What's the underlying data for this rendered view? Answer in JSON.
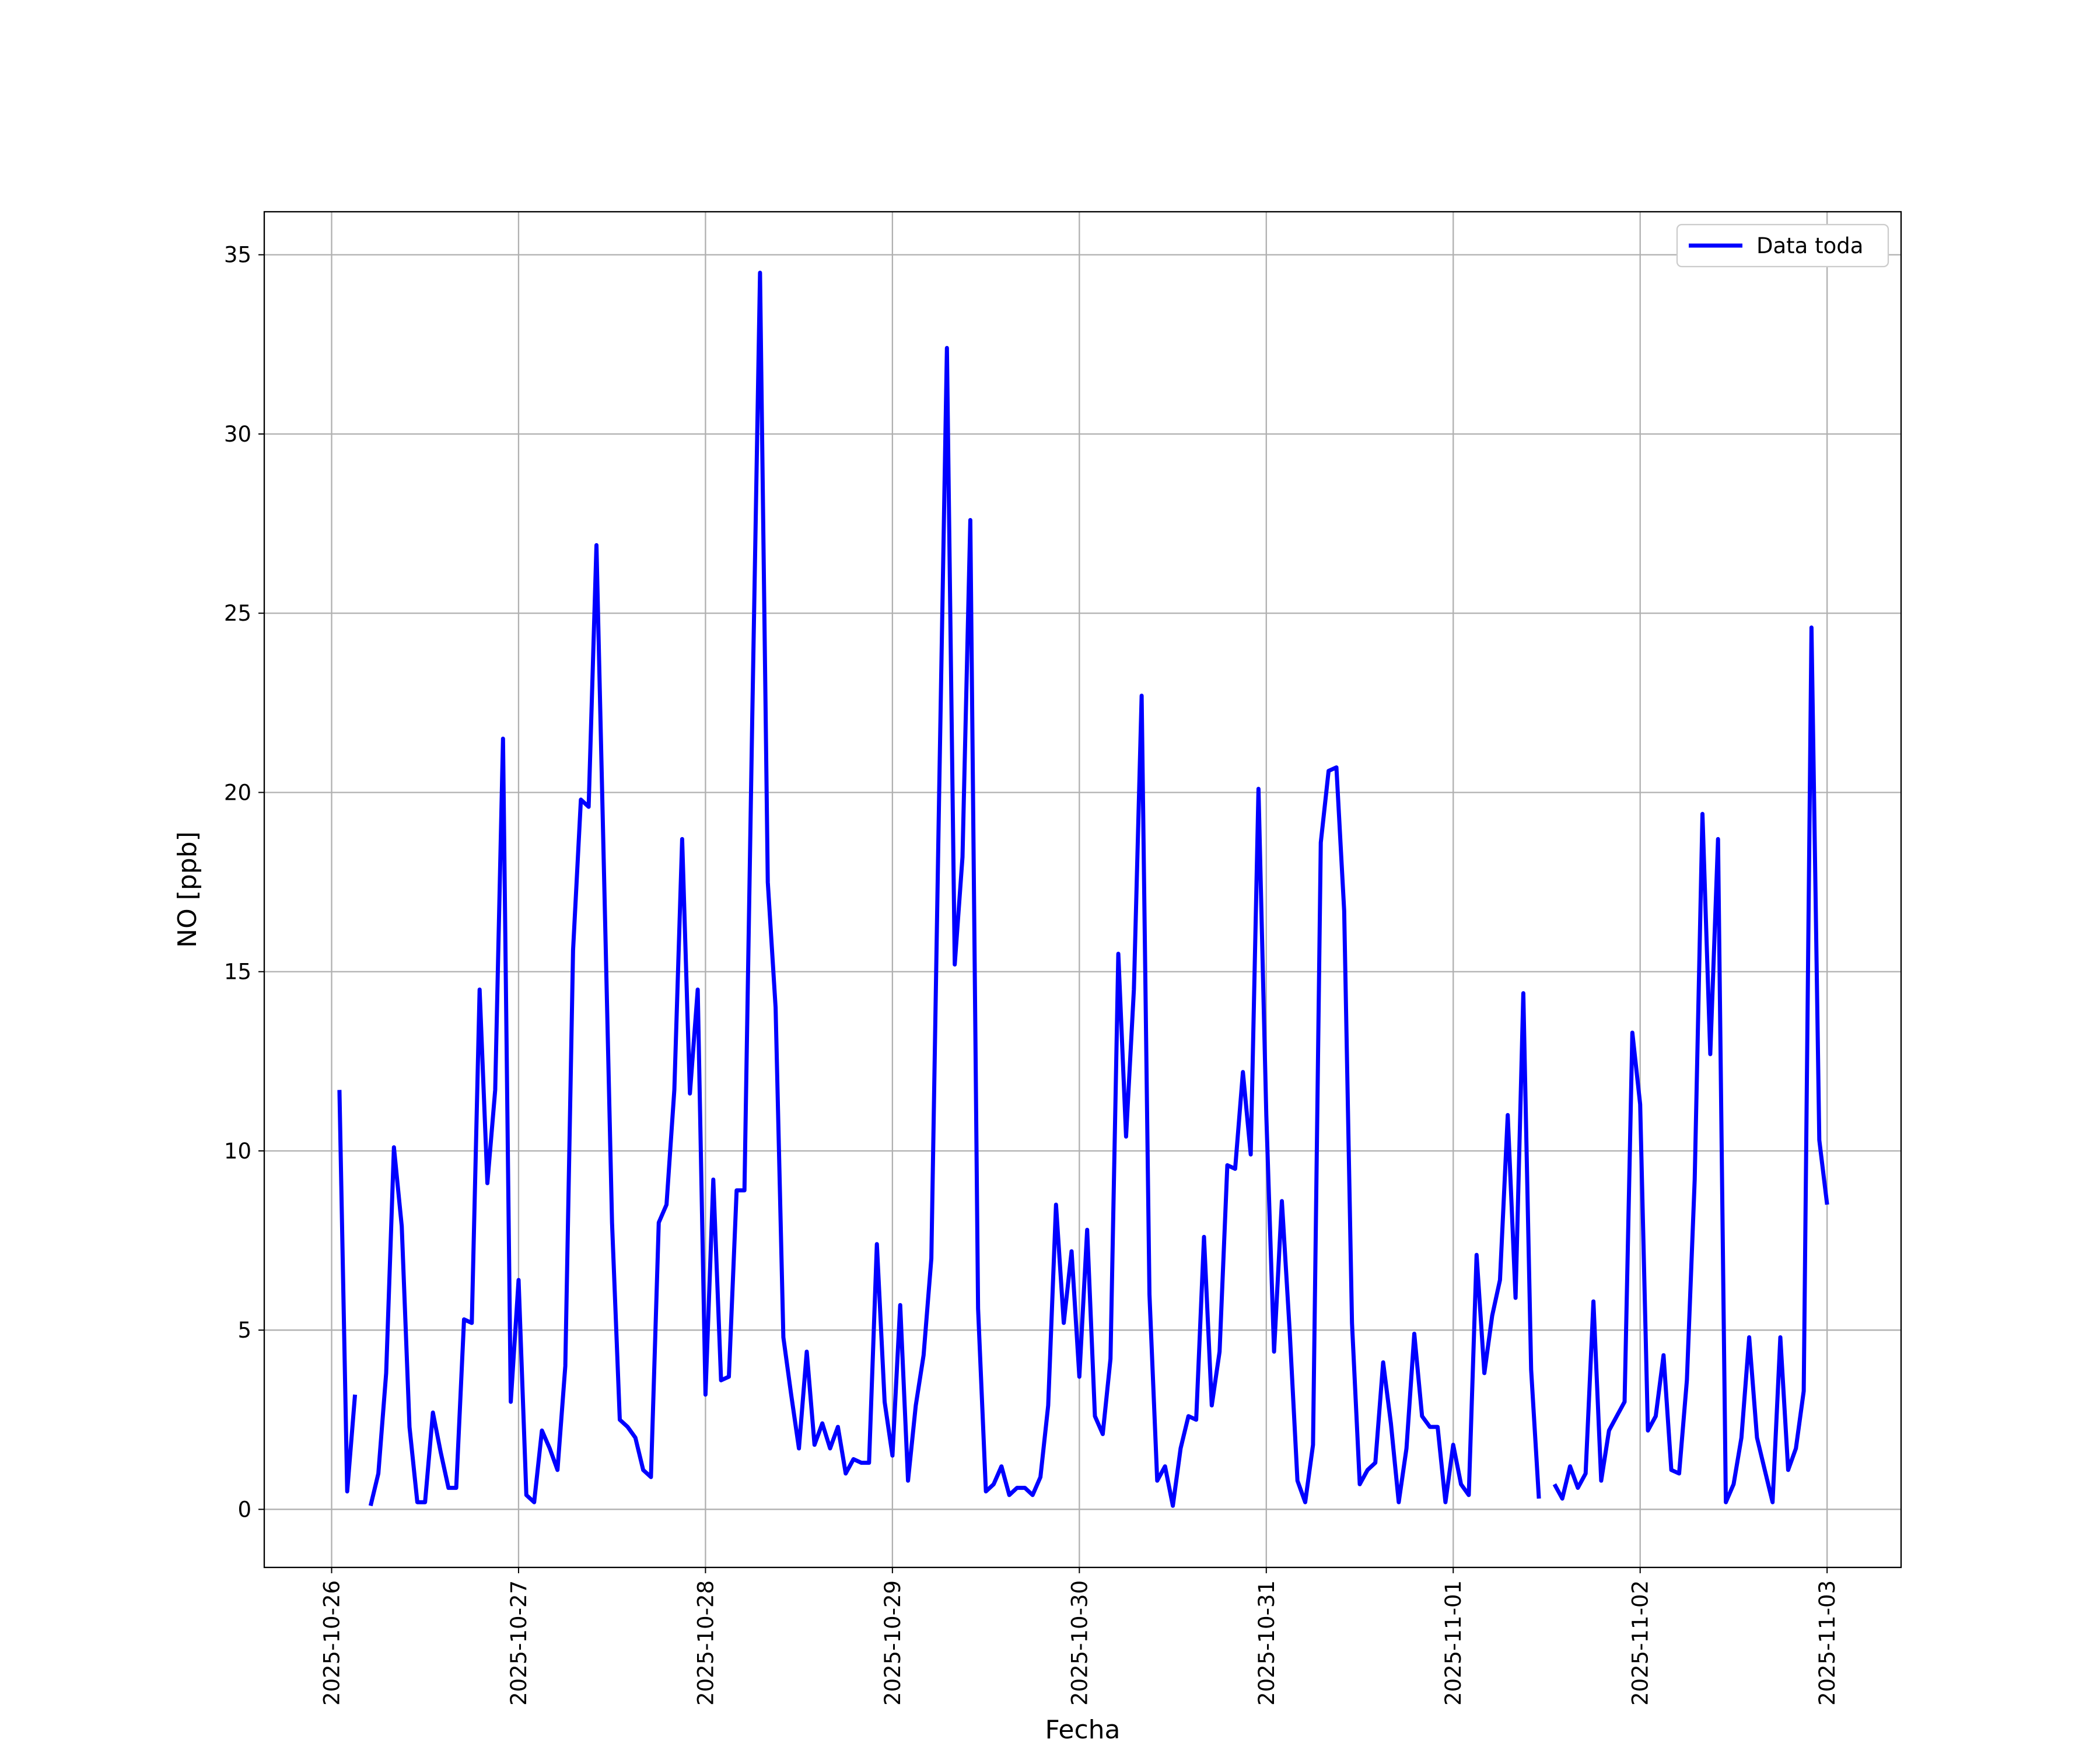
{
  "chart_data": {
    "type": "line",
    "xlabel": "Fecha",
    "ylabel": "NO [ppb]",
    "x": [
      1,
      2,
      3,
      4,
      5,
      6,
      7,
      8,
      9,
      10,
      11,
      12,
      13,
      14,
      15,
      16,
      17,
      18,
      19,
      20,
      21,
      22,
      23,
      24,
      25,
      26,
      27,
      28,
      29,
      30,
      31,
      32,
      33,
      34,
      35,
      36,
      37,
      38,
      39,
      40,
      41,
      42,
      43,
      44,
      45,
      46,
      47,
      48,
      49,
      50,
      51,
      52,
      53,
      54,
      55,
      56,
      57,
      58,
      59,
      60,
      61,
      62,
      63,
      64,
      65,
      66,
      67,
      68,
      69,
      70,
      71,
      72,
      73,
      74,
      75,
      76,
      77,
      78,
      79,
      80,
      81,
      82,
      83,
      84,
      85,
      86,
      87,
      88,
      89,
      90,
      91,
      92,
      93,
      94,
      95,
      96,
      97,
      98,
      99,
      100,
      101,
      102,
      103,
      104,
      105,
      106,
      107,
      108,
      109,
      110,
      111,
      112,
      113,
      114,
      115,
      116,
      117,
      118,
      119,
      120,
      121,
      122,
      123,
      124,
      125,
      126,
      127,
      128,
      129,
      130,
      131,
      132,
      133,
      134,
      135,
      136,
      137,
      138,
      139,
      140,
      141,
      142,
      143,
      144,
      145,
      146,
      147,
      148,
      149,
      150,
      151,
      152,
      153,
      154,
      155,
      156,
      157,
      158,
      159,
      160,
      161,
      162,
      163,
      164,
      165,
      166,
      167,
      168,
      169,
      170,
      171,
      172,
      173,
      174,
      175,
      176,
      177,
      178,
      179,
      180,
      181,
      182,
      183,
      184,
      185,
      186,
      187,
      188,
      189,
      190,
      191,
      192
    ],
    "series": [
      {
        "name": "Data toda",
        "color": "#0000ff",
        "values": [
          11.7,
          0.5,
          3.2,
          null,
          0.1,
          1.0,
          3.8,
          10.1,
          7.9,
          2.3,
          0.2,
          0.2,
          2.7,
          1.6,
          0.6,
          0.6,
          5.3,
          5.2,
          14.5,
          9.1,
          11.7,
          21.5,
          3.0,
          6.4,
          0.4,
          0.2,
          2.2,
          1.7,
          1.1,
          4.0,
          15.6,
          19.8,
          19.6,
          26.9,
          17.5,
          8.0,
          2.5,
          2.3,
          2.0,
          1.1,
          0.9,
          8.0,
          8.5,
          11.7,
          18.7,
          11.6,
          14.5,
          3.2,
          9.2,
          3.6,
          3.7,
          8.9,
          8.9,
          22,
          34.5,
          17.5,
          14.0,
          4.8,
          3.2,
          1.7,
          4.4,
          1.8,
          2.4,
          1.7,
          2.3,
          1.0,
          1.4,
          1.3,
          1.3,
          7.4,
          3.0,
          1.5,
          5.7,
          0.8,
          2.9,
          4.3,
          7.0,
          20,
          32.4,
          15.2,
          18.2,
          27.6,
          5.6,
          0.5,
          0.7,
          1.2,
          0.4,
          0.6,
          0.6,
          0.4,
          0.9,
          2.9,
          8.5,
          5.2,
          7.2,
          3.7,
          7.8,
          2.6,
          2.1,
          4.2,
          15.5,
          10.4,
          14.5,
          22.7,
          6.0,
          0.8,
          1.2,
          0.1,
          1.7,
          2.6,
          2.5,
          7.6,
          2.9,
          4.4,
          9.6,
          9.5,
          12.2,
          9.9,
          20.1,
          11.0,
          4.4,
          8.6,
          5.0,
          0.8,
          0.2,
          1.8,
          18.6,
          20.6,
          20.7,
          16.7,
          5.2,
          0.7,
          1.1,
          1.3,
          4.1,
          2.4,
          0.2,
          1.7,
          4.9,
          2.6,
          2.3,
          2.3,
          0.2,
          1.8,
          0.7,
          0.4,
          7.1,
          3.8,
          5.4,
          6.4,
          11.0,
          5.9,
          14.4,
          3.9,
          0.3,
          null,
          0.7,
          0.3,
          1.2,
          0.6,
          1.0,
          5.8,
          0.8,
          2.2,
          2.6,
          3.0,
          13.3,
          11.3,
          2.2,
          2.6,
          4.3,
          1.1,
          1.0,
          3.6,
          9.2,
          19.4,
          12.7,
          18.7,
          0.2,
          0.7,
          2.0,
          4.8,
          2.0,
          1.1,
          0.2,
          4.8,
          1.1,
          1.7,
          3.3,
          24.6,
          10.3,
          8.5
        ]
      }
    ],
    "xlim": [
      -8.65,
      201.5
    ],
    "xticks": [
      {
        "value": 0,
        "label": "2025-10-26"
      },
      {
        "value": 24,
        "label": "2025-10-27"
      },
      {
        "value": 48,
        "label": "2025-10-28"
      },
      {
        "value": 72,
        "label": "2025-10-29"
      },
      {
        "value": 96,
        "label": "2025-10-30"
      },
      {
        "value": 120,
        "label": "2025-10-31"
      },
      {
        "value": 144,
        "label": "2025-11-01"
      },
      {
        "value": 168,
        "label": "2025-11-02"
      },
      {
        "value": 192,
        "label": "2025-11-03"
      }
    ],
    "ylim": [
      -1.62,
      36.2
    ],
    "yticks": [
      0,
      5,
      10,
      15,
      20,
      25,
      30,
      35
    ],
    "grid": true,
    "legend": "upper right"
  }
}
